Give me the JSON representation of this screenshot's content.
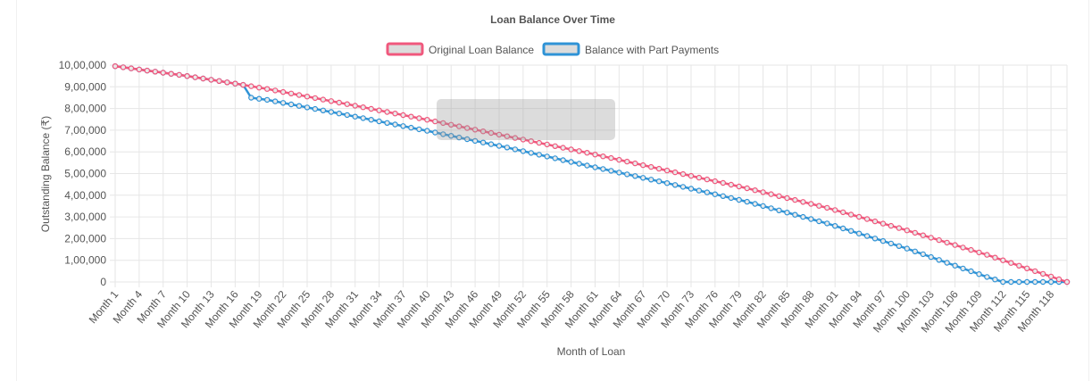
{
  "chart_data": {
    "type": "line",
    "title": "Loan Balance Over Time",
    "xlabel": "Month of Loan",
    "ylabel": "Outstanding Balance (₹)",
    "ylim": [
      0,
      1000000
    ],
    "grid": true,
    "legend_position": "top",
    "x_tick_labels": [
      "Month 1",
      "Month 4",
      "Month 7",
      "Month 10",
      "Month 13",
      "Month 16",
      "Month 19",
      "Month 22",
      "Month 25",
      "Month 28",
      "Month 31",
      "Month 34",
      "Month 37",
      "Month 40",
      "Month 43",
      "Month 46",
      "Month 49",
      "Month 52",
      "Month 55",
      "Month 58",
      "Month 61",
      "Month 64",
      "Month 67",
      "Month 70",
      "Month 73",
      "Month 76",
      "Month 79",
      "Month 82",
      "Month 85",
      "Month 88",
      "Month 91",
      "Month 94",
      "Month 97",
      "Month 100",
      "Month 103",
      "Month 106",
      "Month 109",
      "Month 112",
      "Month 115",
      "Month 118"
    ],
    "y_tick_labels": [
      "10,00,000",
      "9,00,000",
      "8,00,000",
      "7,00,000",
      "6,00,000",
      "5,00,000",
      "4,00,000",
      "3,00,000",
      "2,00,000",
      "1,00,000",
      "0"
    ],
    "x": [
      "Month 1",
      "Month 10",
      "Month 17",
      "Month 18",
      "Month 20",
      "Month 30",
      "Month 40",
      "Month 50",
      "Month 60",
      "Month 70",
      "Month 80",
      "Month 90",
      "Month 100",
      "Month 110",
      "Month 112",
      "Month 120"
    ],
    "series": [
      {
        "name": "Original Loan Balance",
        "color": "#f0587d",
        "values": [
          995000,
          950000,
          909000,
          903000,
          890000,
          820000,
          748000,
          672000,
          596000,
          514000,
          432000,
          342000,
          238000,
          125000,
          100000,
          0
        ]
      },
      {
        "name": "Balance with Part Payments",
        "color": "#2f93d6",
        "values": [
          995000,
          950000,
          909000,
          850000,
          840000,
          770000,
          697000,
          620000,
          537000,
          456000,
          370000,
          270000,
          154000,
          23000,
          0,
          0
        ]
      }
    ]
  }
}
